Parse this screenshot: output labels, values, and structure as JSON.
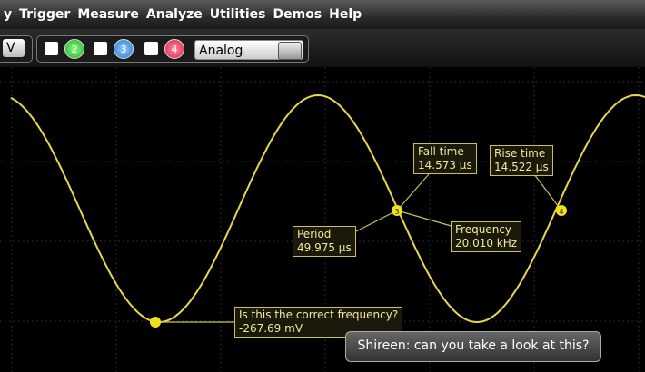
{
  "menu": [
    "y",
    "Trigger",
    "Measure",
    "Analyze",
    "Utilities",
    "Demos",
    "Help"
  ],
  "toolbar": {
    "left_button": "V",
    "channels": [
      "2",
      "3",
      "4"
    ],
    "dropdown": "Analog"
  },
  "markers": [
    "3",
    "4"
  ],
  "callouts": {
    "fall_time": {
      "label": "Fall time",
      "value": "14.573 µs"
    },
    "rise_time": {
      "label": "Rise time",
      "value": "14.522 µs"
    },
    "period": {
      "label": "Period",
      "value": "49.975 µs"
    },
    "frequency": {
      "label": "Frequency",
      "value": "20.010 kHz"
    },
    "question": {
      "label": "Is this the correct frequency?",
      "value": "-267.69 mV"
    }
  },
  "chat": "Shireen: can you take a look at this?"
}
